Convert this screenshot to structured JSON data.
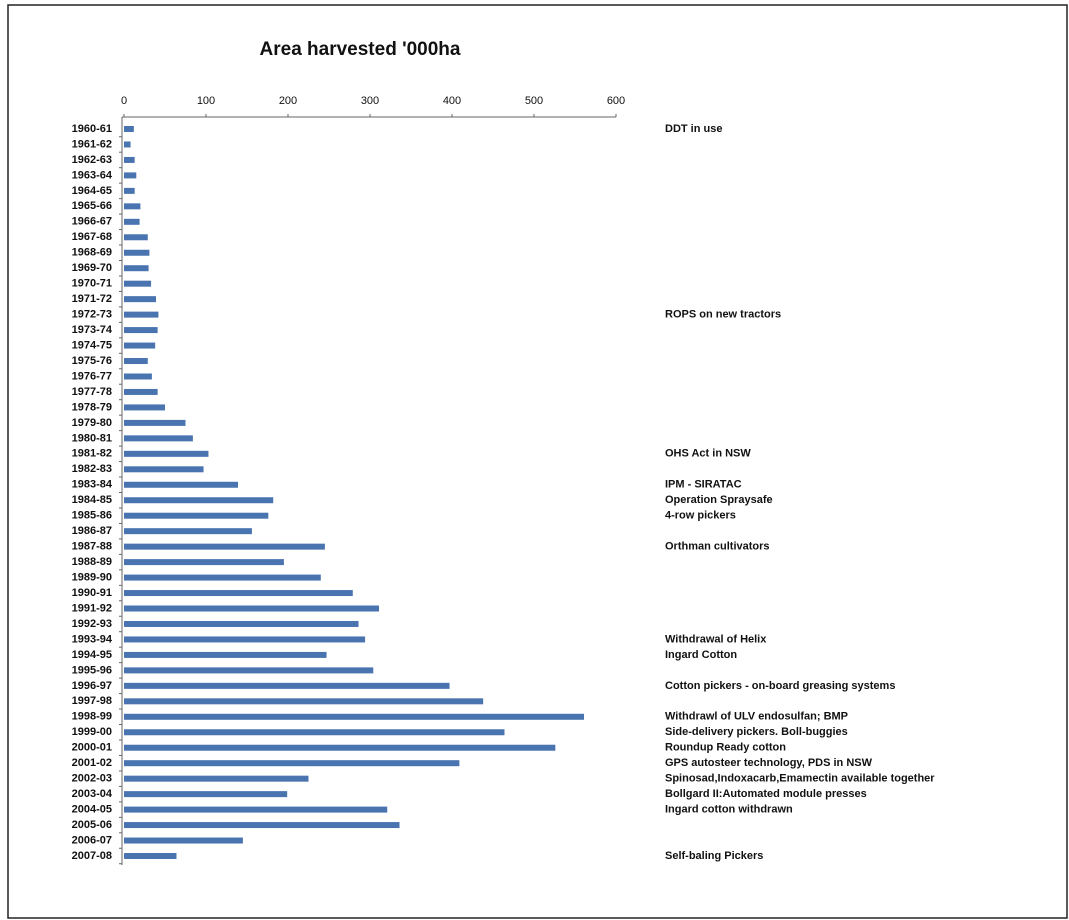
{
  "chart_data": {
    "type": "hbar",
    "title": "Area harvested '000ha",
    "categories": [
      "1960-61",
      "1961-62",
      "1962-63",
      "1963-64",
      "1964-65",
      "1965-66",
      "1966-67",
      "1967-68",
      "1968-69",
      "1969-70",
      "1970-71",
      "1971-72",
      "1972-73",
      "1973-74",
      "1974-75",
      "1975-76",
      "1976-77",
      "1977-78",
      "1978-79",
      "1979-80",
      "1980-81",
      "1981-82",
      "1982-83",
      "1983-84",
      "1984-85",
      "1985-86",
      "1986-87",
      "1987-88",
      "1988-89",
      "1989-90",
      "1990-91",
      "1991-92",
      "1992-93",
      "1993-94",
      "1994-95",
      "1995-96",
      "1996-97",
      "1997-98",
      "1998-99",
      "1999-00",
      "2000-01",
      "2001-02",
      "2002-03",
      "2003-04",
      "2004-05",
      "2005-06",
      "2006-07",
      "2007-08"
    ],
    "values": [
      12,
      8,
      13,
      15,
      13,
      20,
      19,
      29,
      31,
      30,
      33,
      39,
      42,
      41,
      38,
      29,
      34,
      41,
      50,
      75,
      84,
      103,
      97,
      139,
      182,
      176,
      156,
      245,
      195,
      240,
      279,
      311,
      286,
      294,
      247,
      304,
      397,
      438,
      561,
      464,
      526,
      409,
      225,
      199,
      321,
      336,
      145,
      64
    ],
    "annotations": [
      "DDT in use",
      null,
      null,
      null,
      null,
      null,
      null,
      null,
      null,
      null,
      null,
      null,
      "ROPS on new tractors",
      null,
      null,
      null,
      null,
      null,
      null,
      null,
      null,
      "OHS Act in NSW",
      null,
      "IPM - SIRATAC",
      "Operation Spraysafe",
      "4-row pickers",
      null,
      "Orthman cultivators",
      null,
      null,
      null,
      null,
      null,
      "Withdrawal of Helix",
      "Ingard Cotton",
      null,
      "Cotton pickers - on-board greasing systems",
      null,
      "Withdrawl of ULV endosulfan; BMP",
      "Side-delivery pickers. Boll-buggies",
      "Roundup Ready cotton",
      "GPS autosteer technology, PDS in NSW",
      "Spinosad,Indoxacarb,Emamectin available together",
      "Bollgard II:Automated module presses",
      "Ingard cotton withdrawn",
      null,
      null,
      "Self-baling Pickers"
    ],
    "color": "#4a74b0",
    "xlim": [
      0,
      600
    ],
    "xticks": [
      0,
      100,
      200,
      300,
      400,
      500,
      600
    ]
  }
}
